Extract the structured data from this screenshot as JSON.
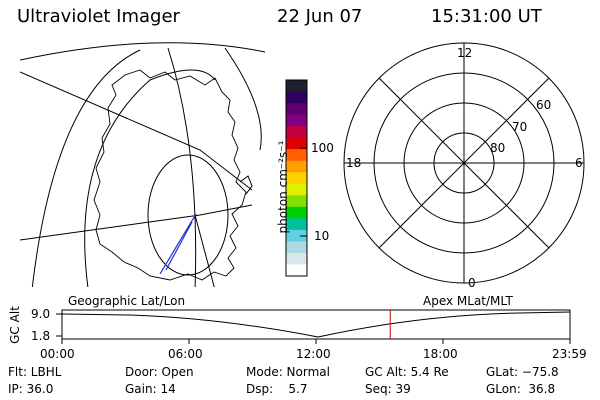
{
  "header": {
    "instrument": "Ultraviolet Imager",
    "date": "22 Jun 07",
    "time": "15:31:00 UT"
  },
  "colorbar": {
    "unit_label": "photon cm⁻²s⁻¹",
    "ticks": [
      "100",
      "10"
    ],
    "scale": "log",
    "colors": [
      "#202030",
      "#300060",
      "#600070",
      "#800080",
      "#c00040",
      "#e00000",
      "#ff6000",
      "#ffa000",
      "#ffd000",
      "#e0f000",
      "#80e000",
      "#00d000",
      "#00c0a0",
      "#60d0e0",
      "#b0d8e0",
      "#d8e8e8",
      "#ffffff"
    ]
  },
  "polar_plot": {
    "mlt_labels": {
      "top": "12",
      "left": "18",
      "right": "6",
      "bottom": "0"
    },
    "lat_labels": [
      "60",
      "70",
      "80"
    ]
  },
  "timeline": {
    "left_label": "Geographic Lat/Lon",
    "right_label": "Apex MLat/MLT",
    "ylabel": "GC Alt",
    "ytick_top": "9.0",
    "ytick_bottom": "1.8",
    "xticks": [
      "00:00",
      "06:00",
      "12:00",
      "18:00",
      "23:59"
    ],
    "current_time_fraction": 0.646,
    "current_marker_color": "#d00000"
  },
  "footer": {
    "row1": [
      "Flt: LBHL",
      "Door: Open",
      "Mode: Normal",
      "GC Alt: 5.4 Re",
      "GLat: −75.8"
    ],
    "row2": [
      "IP: 36.0",
      "Gain: 14",
      "Dsp:    5.7",
      "Seq: 39",
      "GLon:  36.8"
    ]
  }
}
